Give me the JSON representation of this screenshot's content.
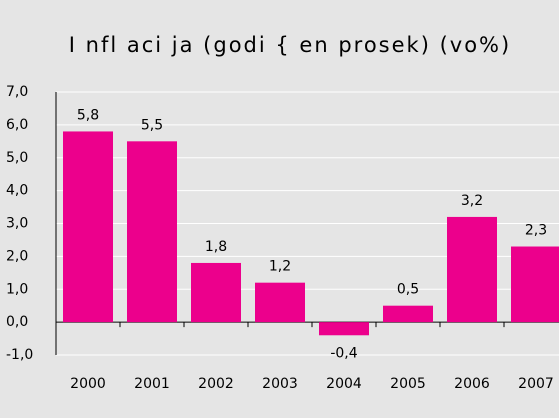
{
  "chart_data": {
    "type": "bar",
    "title": "I nfl aci ja (godi { en prosek) (vo%)",
    "categories": [
      "2000",
      "2001",
      "2002",
      "2003",
      "2004",
      "2005",
      "2006",
      "2007"
    ],
    "values": [
      5.8,
      5.5,
      1.8,
      1.2,
      -0.4,
      0.5,
      3.2,
      2.3
    ],
    "value_labels": [
      "5,8",
      "5,5",
      "1,8",
      "1,2",
      "-0,4",
      "0,5",
      "3,2",
      "2,3"
    ],
    "color": "#ec008c",
    "ylim": [
      -1,
      7
    ],
    "yticks": [
      {
        "value": -1,
        "label": "-1,0"
      },
      {
        "value": 0,
        "label": "0,0"
      },
      {
        "value": 1,
        "label": "1,0"
      },
      {
        "value": 2,
        "label": "2,0"
      },
      {
        "value": 3,
        "label": "3,0"
      },
      {
        "value": 4,
        "label": "4,0"
      },
      {
        "value": 5,
        "label": "5,0"
      },
      {
        "value": 6,
        "label": "6,0"
      },
      {
        "value": 7,
        "label": "7,0"
      }
    ],
    "grid": true
  }
}
